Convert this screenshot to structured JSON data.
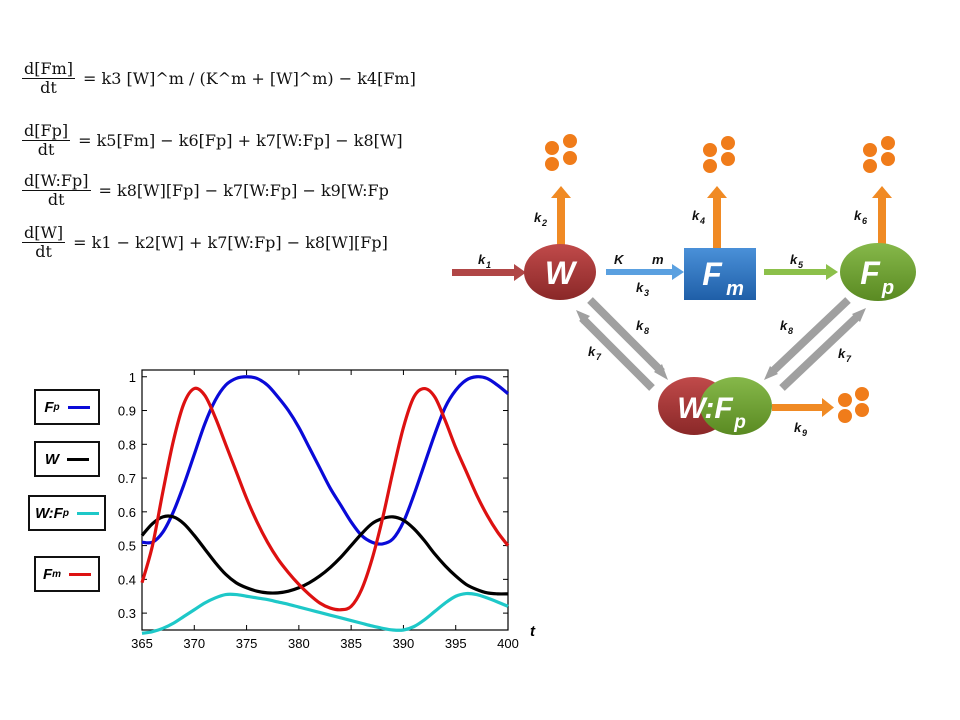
{
  "equations": [
    {
      "num": "d[Fm]",
      "den": "dt",
      "rhs": "= k3 [W]^m / (K^m + [W]^m) − k4[Fm]"
    },
    {
      "num": "d[Fp]",
      "den": "dt",
      "rhs": "= k5[Fm] − k6[Fp] + k7[W:Fp] − k8[W]"
    },
    {
      "num": "d[W:Fp]",
      "den": "dt",
      "rhs": "= k8[W][Fp] − k7[W:Fp] − k9[W:Fp"
    },
    {
      "num": "d[W]",
      "den": "dt",
      "rhs": "= k1 − k2[W] + k7[W:Fp] − k8[W][Fp]"
    }
  ],
  "diagram": {
    "nodes": {
      "W": "W",
      "Fm": "F",
      "Fm_sub": "m",
      "Fp": "F",
      "Fp_sub": "p",
      "WFp": "W:F",
      "WFp_sub": "p"
    },
    "rates": {
      "k1": "k",
      "k1s": "1",
      "k2": "k",
      "k2s": "2",
      "k3": "k",
      "k3s": "3",
      "k4": "k",
      "k4s": "4",
      "k5": "k",
      "k5s": "5",
      "k6": "k",
      "k6s": "6",
      "k7a": "k",
      "k7as": "7",
      "k7b": "k",
      "k7bs": "7",
      "k8a": "k",
      "k8as": "8",
      "k8b": "k",
      "k8bs": "8",
      "k9": "k",
      "k9s": "9",
      "K": "K",
      "m": "m"
    },
    "colors": {
      "W": "#a83535",
      "Fm": "#2f78c4",
      "Fp": "#6a9e2e",
      "arrow_in": "#b04646",
      "arrow_blue": "#5aa0e0",
      "arrow_green": "#8cc04a",
      "arrow_orange": "#f08a24",
      "arrow_gray": "#a0a0a0",
      "dot": "#f07c1a"
    }
  },
  "legend": [
    {
      "label": "F",
      "sub": "p",
      "color": "#0a0ad8"
    },
    {
      "label": "W",
      "sub": "",
      "color": "#000000"
    },
    {
      "label": "W:F",
      "sub": "p",
      "color": "#1ec8c8"
    },
    {
      "label": "F",
      "sub": "m",
      "color": "#dd1111"
    }
  ],
  "chart_data": {
    "type": "line",
    "xlabel": "t",
    "xlim": [
      365,
      400
    ],
    "ylim": [
      0.25,
      1.02
    ],
    "xticks": [
      365,
      370,
      375,
      380,
      385,
      390,
      395,
      400
    ],
    "yticks": [
      0.3,
      0.4,
      0.5,
      0.6,
      0.7,
      0.8,
      0.9,
      1
    ],
    "series": [
      {
        "name": "Fp",
        "color": "#0a0ad8",
        "x": [
          365,
          366,
          367,
          368,
          369,
          370,
          371,
          372,
          373,
          374,
          375,
          376,
          377,
          378,
          379,
          380,
          381,
          382,
          383,
          384,
          385,
          386,
          387,
          388,
          389,
          390,
          391,
          392,
          393,
          394,
          395,
          396,
          397,
          398,
          399,
          400
        ],
        "y": [
          0.51,
          0.51,
          0.54,
          0.6,
          0.68,
          0.77,
          0.86,
          0.93,
          0.975,
          0.995,
          1.0,
          0.995,
          0.975,
          0.94,
          0.9,
          0.85,
          0.79,
          0.73,
          0.67,
          0.62,
          0.57,
          0.53,
          0.51,
          0.505,
          0.52,
          0.57,
          0.65,
          0.74,
          0.83,
          0.91,
          0.96,
          0.99,
          1.0,
          0.995,
          0.975,
          0.95
        ]
      },
      {
        "name": "W",
        "color": "#000000",
        "x": [
          365,
          366,
          367,
          368,
          369,
          370,
          371,
          372,
          373,
          374,
          375,
          376,
          377,
          378,
          379,
          380,
          381,
          382,
          383,
          384,
          385,
          386,
          387,
          388,
          389,
          390,
          391,
          392,
          393,
          394,
          395,
          396,
          397,
          398,
          399,
          400
        ],
        "y": [
          0.53,
          0.565,
          0.585,
          0.585,
          0.565,
          0.53,
          0.49,
          0.45,
          0.415,
          0.39,
          0.375,
          0.365,
          0.36,
          0.36,
          0.365,
          0.375,
          0.39,
          0.41,
          0.435,
          0.465,
          0.5,
          0.535,
          0.565,
          0.58,
          0.585,
          0.575,
          0.55,
          0.515,
          0.475,
          0.44,
          0.41,
          0.385,
          0.37,
          0.36,
          0.357,
          0.357
        ]
      },
      {
        "name": "W:Fp",
        "color": "#1ec8c8",
        "x": [
          365,
          366,
          367,
          368,
          369,
          370,
          371,
          372,
          373,
          374,
          375,
          376,
          377,
          378,
          379,
          380,
          381,
          382,
          383,
          384,
          385,
          386,
          387,
          388,
          389,
          390,
          391,
          392,
          393,
          394,
          395,
          396,
          397,
          398,
          399,
          400
        ],
        "y": [
          0.24,
          0.245,
          0.255,
          0.27,
          0.29,
          0.31,
          0.33,
          0.345,
          0.355,
          0.355,
          0.35,
          0.345,
          0.34,
          0.333,
          0.326,
          0.318,
          0.31,
          0.302,
          0.294,
          0.286,
          0.278,
          0.27,
          0.262,
          0.255,
          0.25,
          0.25,
          0.26,
          0.28,
          0.305,
          0.33,
          0.35,
          0.358,
          0.355,
          0.345,
          0.333,
          0.32
        ]
      },
      {
        "name": "Fm",
        "color": "#dd1111",
        "x": [
          365,
          366,
          367,
          368,
          369,
          370,
          371,
          372,
          373,
          374,
          375,
          376,
          377,
          378,
          379,
          380,
          381,
          382,
          383,
          384,
          385,
          386,
          387,
          388,
          389,
          390,
          391,
          392,
          393,
          394,
          395,
          396,
          397,
          398,
          399,
          400
        ],
        "y": [
          0.39,
          0.5,
          0.66,
          0.81,
          0.92,
          0.965,
          0.945,
          0.88,
          0.8,
          0.72,
          0.64,
          0.57,
          0.51,
          0.46,
          0.42,
          0.385,
          0.355,
          0.33,
          0.315,
          0.31,
          0.32,
          0.37,
          0.46,
          0.58,
          0.72,
          0.85,
          0.94,
          0.965,
          0.94,
          0.87,
          0.79,
          0.72,
          0.65,
          0.59,
          0.54,
          0.5
        ]
      }
    ]
  }
}
